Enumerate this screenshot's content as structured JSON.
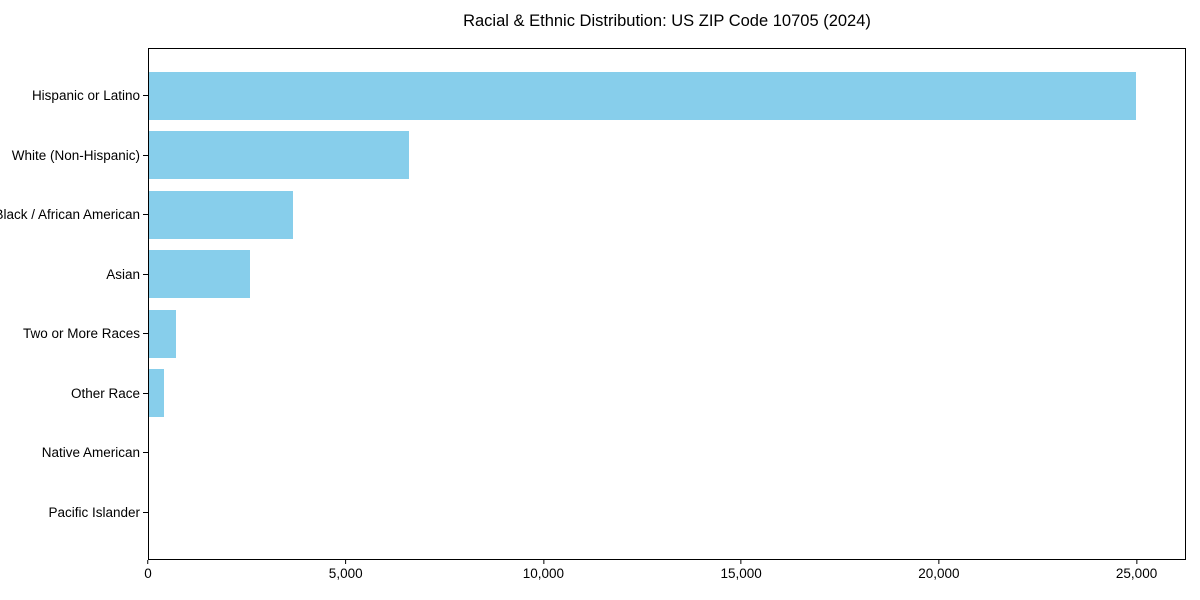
{
  "title": "Racial & Ethnic Distribution: US ZIP Code 10705 (2024)",
  "chart_data": {
    "type": "bar",
    "orientation": "horizontal",
    "title": "Racial & Ethnic Distribution: US ZIP Code 10705 (2024)",
    "xlabel": "",
    "ylabel": "",
    "categories": [
      "Hispanic or Latino",
      "White (Non-Hispanic)",
      "Black / African American",
      "Asian",
      "Two or More Races",
      "Other Race",
      "Native American",
      "Pacific Islander"
    ],
    "values": [
      25000,
      6600,
      3650,
      2550,
      680,
      380,
      0,
      0
    ],
    "xlim": [
      0,
      26250
    ],
    "x_ticks": [
      0,
      5000,
      10000,
      15000,
      20000,
      25000
    ],
    "x_tick_labels": [
      "0",
      "5,000",
      "10,000",
      "15,000",
      "20,000",
      "25,000"
    ],
    "bar_color": "#87CEEB",
    "grid": false,
    "legend": null
  }
}
